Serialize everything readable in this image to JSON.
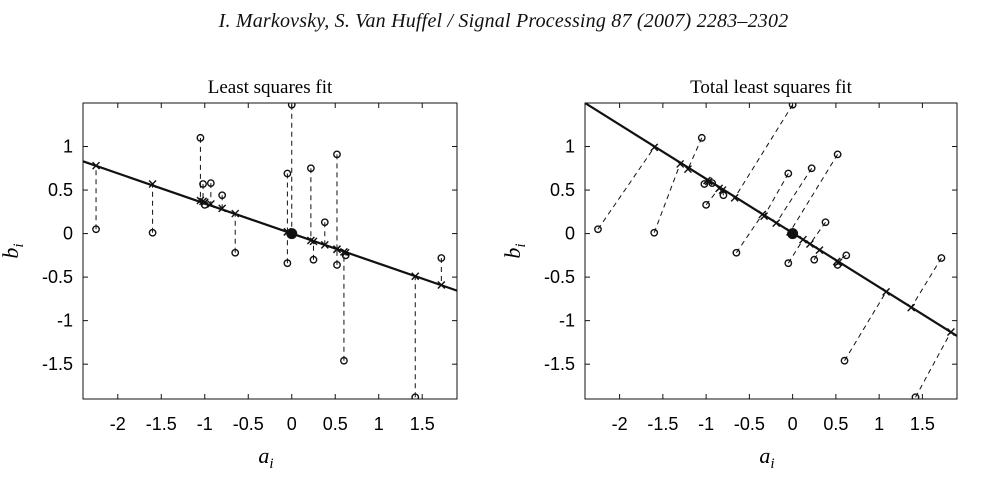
{
  "header": "I. Markovsky, S. Van Huffel / Signal Processing 87 (2007) 2283–2302",
  "chart_data": [
    {
      "type": "scatter",
      "title": "Least squares fit",
      "xlabel": "a",
      "xlabel_sub": "i",
      "ylabel": "b",
      "ylabel_sub": "i",
      "xlim": [
        -2.4,
        1.9
      ],
      "ylim": [
        -1.9,
        1.5
      ],
      "xticks": [
        -2,
        -1.5,
        -1,
        -0.5,
        0,
        0.5,
        1,
        1.5
      ],
      "xtick_labels": [
        "-2",
        "-1.5",
        "-1",
        "-0.5",
        "0",
        "0.5",
        "1",
        "1.5"
      ],
      "yticks": [
        1,
        0.5,
        0,
        -0.5,
        -1,
        -1.5
      ],
      "ytick_labels": [
        "1",
        "0.5",
        "0",
        "-0.5",
        "-1",
        "-1.5"
      ],
      "grid": false,
      "line": {
        "x": [
          -2.4,
          1.9
        ],
        "y": [
          0.83,
          -0.655
        ]
      },
      "centroid": [
        0,
        0
      ],
      "points": [
        {
          "x": -2.25,
          "y": 0.05,
          "fx": -2.25,
          "fy": 0.78
        },
        {
          "x": -1.6,
          "y": 0.01,
          "fx": -1.6,
          "fy": 0.57
        },
        {
          "x": -1.05,
          "y": 1.1,
          "fx": -1.05,
          "fy": 0.38
        },
        {
          "x": -1.02,
          "y": 0.57,
          "fx": -1.02,
          "fy": 0.37
        },
        {
          "x": -1.0,
          "y": 0.33,
          "fx": -1.0,
          "fy": 0.36
        },
        {
          "x": -0.93,
          "y": 0.58,
          "fx": -0.93,
          "fy": 0.34
        },
        {
          "x": -0.8,
          "y": 0.44,
          "fx": -0.8,
          "fy": 0.29
        },
        {
          "x": -0.65,
          "y": -0.22,
          "fx": -0.65,
          "fy": 0.23
        },
        {
          "x": -0.05,
          "y": 0.69,
          "fx": -0.05,
          "fy": 0.02
        },
        {
          "x": -0.05,
          "y": -0.34,
          "fx": -0.05,
          "fy": 0.02
        },
        {
          "x": 0.0,
          "y": 1.48,
          "fx": 0.0,
          "fy": 0.0
        },
        {
          "x": 0.22,
          "y": 0.75,
          "fx": 0.22,
          "fy": -0.08
        },
        {
          "x": 0.25,
          "y": -0.3,
          "fx": 0.25,
          "fy": -0.09
        },
        {
          "x": 0.38,
          "y": 0.13,
          "fx": 0.38,
          "fy": -0.13
        },
        {
          "x": 0.52,
          "y": 0.91,
          "fx": 0.52,
          "fy": -0.18
        },
        {
          "x": 0.52,
          "y": -0.36,
          "fx": 0.52,
          "fy": -0.18
        },
        {
          "x": 0.6,
          "y": -1.46,
          "fx": 0.6,
          "fy": -0.21
        },
        {
          "x": 0.62,
          "y": -0.25,
          "fx": 0.62,
          "fy": -0.22
        },
        {
          "x": 1.42,
          "y": -1.88,
          "fx": 1.42,
          "fy": -0.49
        },
        {
          "x": 1.72,
          "y": -0.28,
          "fx": 1.72,
          "fy": -0.59
        }
      ]
    },
    {
      "type": "scatter",
      "title": "Total least squares fit",
      "xlabel": "a",
      "xlabel_sub": "i",
      "ylabel": "b",
      "ylabel_sub": "i",
      "xlim": [
        -2.4,
        1.9
      ],
      "ylim": [
        -1.9,
        1.5
      ],
      "xticks": [
        -2,
        -1.5,
        -1,
        -0.5,
        0,
        0.5,
        1,
        1.5
      ],
      "xtick_labels": [
        "-2",
        "-1.5",
        "-1",
        "-0.5",
        "0",
        "0.5",
        "1",
        "1.5"
      ],
      "yticks": [
        1,
        0.5,
        0,
        -0.5,
        -1,
        -1.5
      ],
      "ytick_labels": [
        "1",
        "0.5",
        "0",
        "-0.5",
        "-1",
        "-1.5"
      ],
      "grid": false,
      "line": {
        "x": [
          -2.4,
          1.9
        ],
        "y": [
          1.5,
          -1.175
        ]
      },
      "centroid": [
        0,
        0
      ],
      "points": [
        {
          "x": -2.25,
          "y": 0.05,
          "fx": -1.6,
          "fy": 0.99
        },
        {
          "x": -1.6,
          "y": 0.01,
          "fx": -1.3,
          "fy": 0.8
        },
        {
          "x": -1.05,
          "y": 1.1,
          "fx": -1.21,
          "fy": 0.74
        },
        {
          "x": -1.02,
          "y": 0.57,
          "fx": -0.99,
          "fy": 0.61
        },
        {
          "x": -1.0,
          "y": 0.33,
          "fx": -0.85,
          "fy": 0.52
        },
        {
          "x": -0.93,
          "y": 0.58,
          "fx": -0.97,
          "fy": 0.6
        },
        {
          "x": -0.8,
          "y": 0.44,
          "fx": -0.81,
          "fy": 0.5
        },
        {
          "x": -0.65,
          "y": -0.22,
          "fx": -0.35,
          "fy": 0.22
        },
        {
          "x": -0.05,
          "y": 0.69,
          "fx": -0.33,
          "fy": 0.2
        },
        {
          "x": -0.05,
          "y": -0.34,
          "fx": 0.12,
          "fy": -0.07
        },
        {
          "x": 0.0,
          "y": 1.48,
          "fx": -0.67,
          "fy": 0.41
        },
        {
          "x": 0.22,
          "y": 0.75,
          "fx": -0.19,
          "fy": 0.12
        },
        {
          "x": 0.25,
          "y": -0.3,
          "fx": 0.31,
          "fy": -0.19
        },
        {
          "x": 0.38,
          "y": 0.13,
          "fx": 0.2,
          "fy": -0.12
        },
        {
          "x": 0.52,
          "y": 0.91,
          "fx": -0.03,
          "fy": 0.02
        },
        {
          "x": 0.52,
          "y": -0.36,
          "fx": 0.53,
          "fy": -0.33
        },
        {
          "x": 0.6,
          "y": -1.46,
          "fx": 1.08,
          "fy": -0.67
        },
        {
          "x": 0.62,
          "y": -0.25,
          "fx": 0.51,
          "fy": -0.32
        },
        {
          "x": 1.42,
          "y": -1.88,
          "fx": 1.83,
          "fy": -1.13
        },
        {
          "x": 1.72,
          "y": -0.28,
          "fx": 1.37,
          "fy": -0.85
        }
      ]
    }
  ]
}
